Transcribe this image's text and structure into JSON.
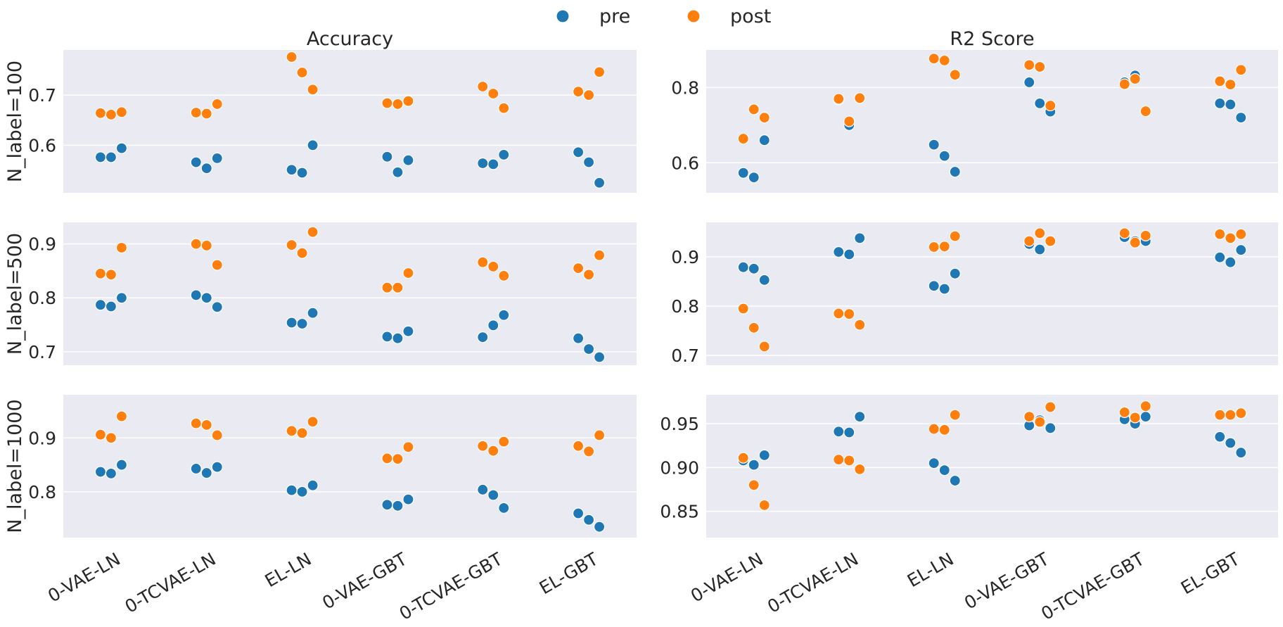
{
  "chart_data": {
    "type": "scatter",
    "subtype": "swarm-facet-grid",
    "legend": {
      "position": "top-center",
      "entries": [
        {
          "name": "pre",
          "color": "#1f77b4"
        },
        {
          "name": "post",
          "color": "#ff7f0e"
        }
      ]
    },
    "categories": [
      "0-VAE-LN",
      "0-TCVAE-LN",
      "EL-LN",
      "0-VAE-GBT",
      "0-TCVAE-GBT",
      "EL-GBT"
    ],
    "columns": [
      "Accuracy",
      "R2 Score"
    ],
    "rows": [
      "N_label=100",
      "N_label=500",
      "N_label=1000"
    ],
    "panels": [
      {
        "row": 0,
        "col": 0,
        "ylim": [
          0.505,
          0.79
        ],
        "yticks": [
          0.6,
          0.7
        ],
        "ytick_labels": [
          "0.6",
          "0.7"
        ],
        "pre": [
          [
            0.576,
            0.576,
            0.594
          ],
          [
            0.566,
            0.554,
            0.574
          ],
          [
            0.551,
            0.545,
            0.6
          ],
          [
            0.577,
            0.546,
            0.57
          ],
          [
            0.564,
            0.562,
            0.581
          ],
          [
            0.586,
            0.566,
            0.525
          ]
        ],
        "post": [
          [
            0.664,
            0.661,
            0.666
          ],
          [
            0.665,
            0.663,
            0.682
          ],
          [
            0.776,
            0.745,
            0.711
          ],
          [
            0.684,
            0.682,
            0.688
          ],
          [
            0.717,
            0.703,
            0.674
          ],
          [
            0.707,
            0.7,
            0.746
          ]
        ]
      },
      {
        "row": 0,
        "col": 1,
        "ylim": [
          0.52,
          0.9
        ],
        "yticks": [
          0.6,
          0.8
        ],
        "ytick_labels": [
          "0.6",
          "0.8"
        ],
        "pre": [
          [
            0.573,
            0.561,
            0.66
          ],
          [
            0.768,
            0.7,
            0.772
          ],
          [
            0.648,
            0.618,
            0.576
          ],
          [
            0.814,
            0.758,
            0.736
          ],
          [
            0.814,
            0.832,
            0.737
          ],
          [
            0.758,
            0.755,
            0.72
          ]
        ],
        "post": [
          [
            0.664,
            0.742,
            0.72
          ],
          [
            0.77,
            0.71,
            0.772
          ],
          [
            0.877,
            0.872,
            0.834
          ],
          [
            0.86,
            0.855,
            0.752
          ],
          [
            0.809,
            0.823,
            0.737
          ],
          [
            0.817,
            0.808,
            0.847
          ]
        ]
      },
      {
        "row": 1,
        "col": 0,
        "ylim": [
          0.675,
          0.94
        ],
        "yticks": [
          0.7,
          0.8,
          0.9
        ],
        "ytick_labels": [
          "0.7",
          "0.8",
          "0.9"
        ],
        "pre": [
          [
            0.787,
            0.784,
            0.8
          ],
          [
            0.805,
            0.8,
            0.783
          ],
          [
            0.754,
            0.752,
            0.772
          ],
          [
            0.728,
            0.725,
            0.738
          ],
          [
            0.727,
            0.749,
            0.768
          ],
          [
            0.725,
            0.705,
            0.69
          ]
        ],
        "post": [
          [
            0.845,
            0.843,
            0.893
          ],
          [
            0.9,
            0.897,
            0.861
          ],
          [
            0.898,
            0.883,
            0.922
          ],
          [
            0.819,
            0.819,
            0.846
          ],
          [
            0.866,
            0.858,
            0.841
          ],
          [
            0.855,
            0.843,
            0.879
          ]
        ]
      },
      {
        "row": 1,
        "col": 1,
        "ylim": [
          0.68,
          0.97
        ],
        "yticks": [
          0.7,
          0.8,
          0.9
        ],
        "ytick_labels": [
          "0.7",
          "0.8",
          "0.9"
        ],
        "pre": [
          [
            0.879,
            0.876,
            0.853
          ],
          [
            0.91,
            0.905,
            0.938
          ],
          [
            0.841,
            0.835,
            0.866
          ],
          [
            0.926,
            0.915,
            0.931
          ],
          [
            0.94,
            0.932,
            0.932
          ],
          [
            0.899,
            0.889,
            0.914
          ]
        ],
        "post": [
          [
            0.795,
            0.756,
            0.718
          ],
          [
            0.785,
            0.784,
            0.762
          ],
          [
            0.92,
            0.921,
            0.942
          ],
          [
            0.932,
            0.948,
            0.932
          ],
          [
            0.948,
            0.929,
            0.943
          ],
          [
            0.946,
            0.938,
            0.946
          ]
        ]
      },
      {
        "row": 2,
        "col": 0,
        "ylim": [
          0.715,
          0.98
        ],
        "yticks": [
          0.8,
          0.9
        ],
        "ytick_labels": [
          "0.8",
          "0.9"
        ],
        "pre": [
          [
            0.837,
            0.834,
            0.85
          ],
          [
            0.843,
            0.835,
            0.846
          ],
          [
            0.803,
            0.8,
            0.812
          ],
          [
            0.776,
            0.774,
            0.786
          ],
          [
            0.804,
            0.794,
            0.77
          ],
          [
            0.76,
            0.748,
            0.735
          ]
        ],
        "post": [
          [
            0.906,
            0.9,
            0.94
          ],
          [
            0.927,
            0.924,
            0.905
          ],
          [
            0.913,
            0.909,
            0.93
          ],
          [
            0.862,
            0.861,
            0.883
          ],
          [
            0.885,
            0.876,
            0.893
          ],
          [
            0.885,
            0.875,
            0.905
          ]
        ]
      },
      {
        "row": 2,
        "col": 1,
        "ylim": [
          0.82,
          0.983
        ],
        "yticks": [
          0.85,
          0.9,
          0.95
        ],
        "ytick_labels": [
          "0.85",
          "0.90",
          "0.95"
        ],
        "pre": [
          [
            0.908,
            0.903,
            0.914
          ],
          [
            0.941,
            0.94,
            0.958
          ],
          [
            0.905,
            0.897,
            0.885
          ],
          [
            0.948,
            0.954,
            0.945
          ],
          [
            0.955,
            0.95,
            0.958
          ],
          [
            0.935,
            0.928,
            0.917
          ]
        ],
        "post": [
          [
            0.911,
            0.88,
            0.857
          ],
          [
            0.909,
            0.908,
            0.898
          ],
          [
            0.944,
            0.943,
            0.96
          ],
          [
            0.958,
            0.952,
            0.969
          ],
          [
            0.963,
            0.957,
            0.97
          ],
          [
            0.96,
            0.96,
            0.962
          ]
        ]
      }
    ]
  }
}
